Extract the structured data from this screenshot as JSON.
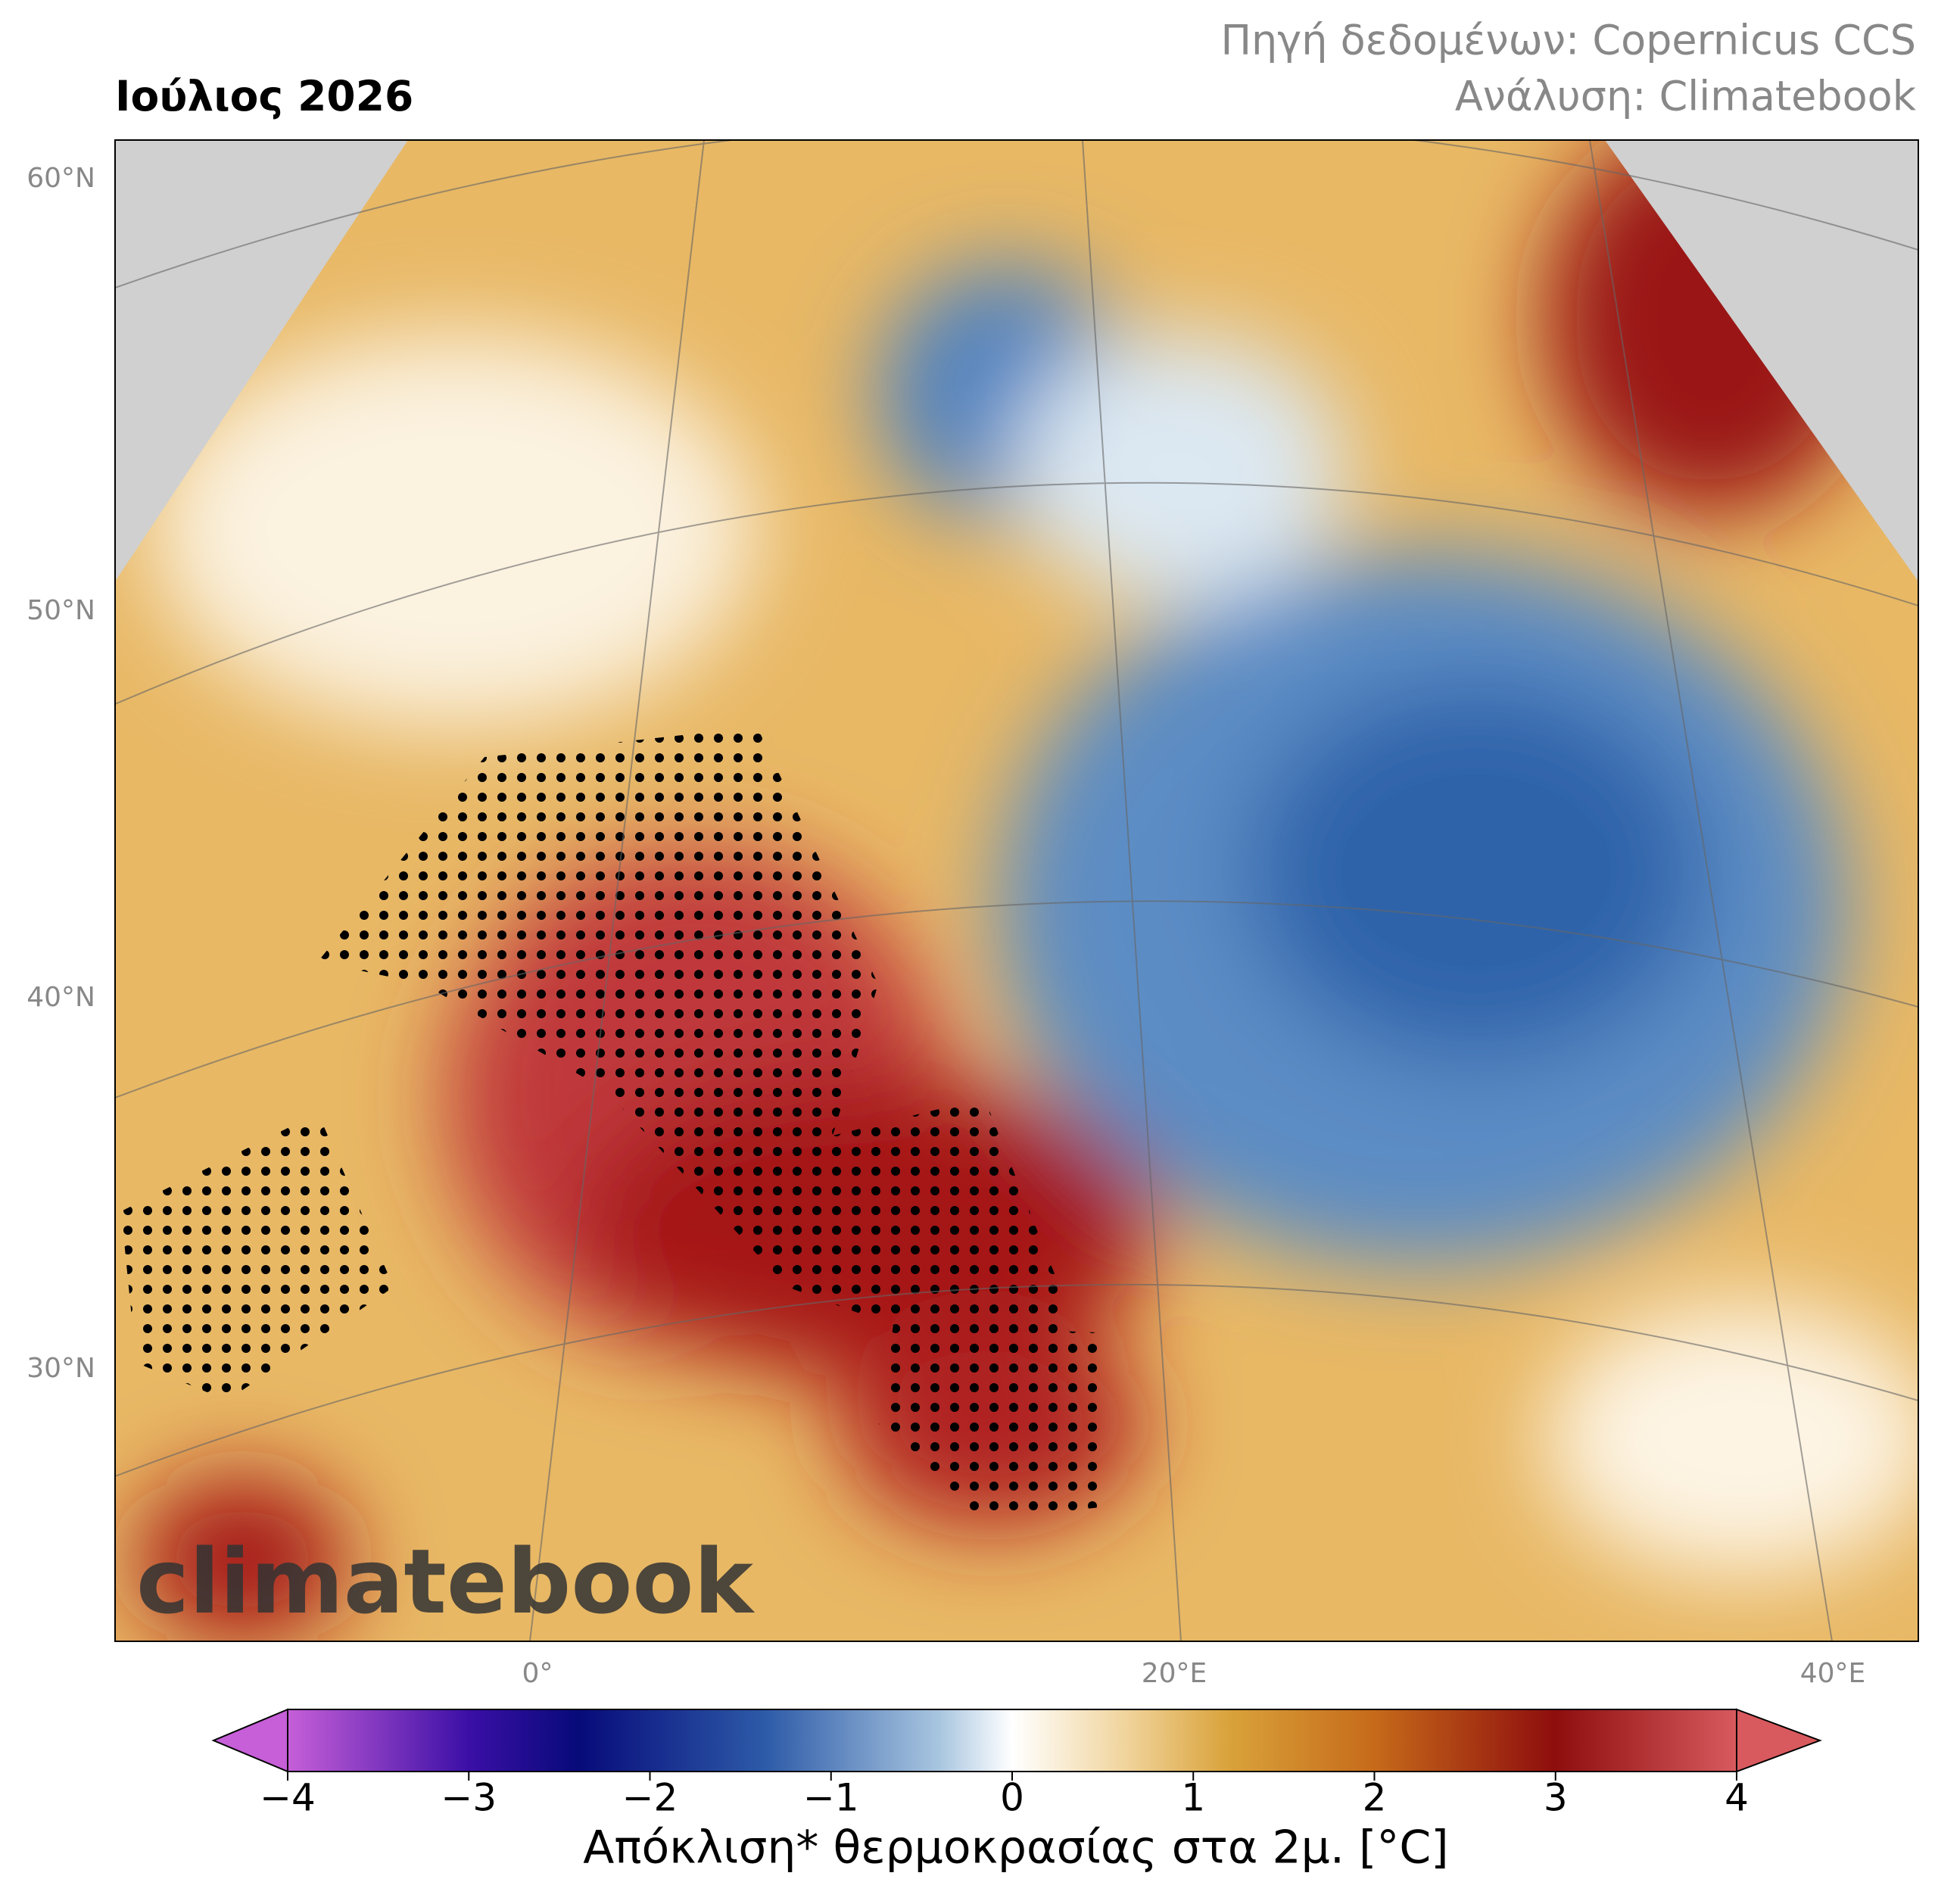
{
  "header": {
    "title": "Ιούλιος 2026",
    "source": "Πηγή δεδομένων: Copernicus CCS",
    "analysis": "Ανάλυση: Climatebook"
  },
  "map": {
    "lat_labels": [
      "60°N",
      "50°N",
      "40°N",
      "30°N"
    ],
    "lon_labels": [
      "0°",
      "20°E",
      "40°E"
    ],
    "watermark": "climatebook"
  },
  "colorbar": {
    "label": "Απόκλιση* θερμοκρασίας στα 2μ. [°C]",
    "lim": [
      -4,
      4
    ],
    "ticks": [
      {
        "value": -4,
        "label": "−4"
      },
      {
        "value": -3,
        "label": "−3"
      },
      {
        "value": -2,
        "label": "−2"
      },
      {
        "value": -1,
        "label": "−1"
      },
      0,
      1,
      2,
      3,
      4
    ]
  }
}
